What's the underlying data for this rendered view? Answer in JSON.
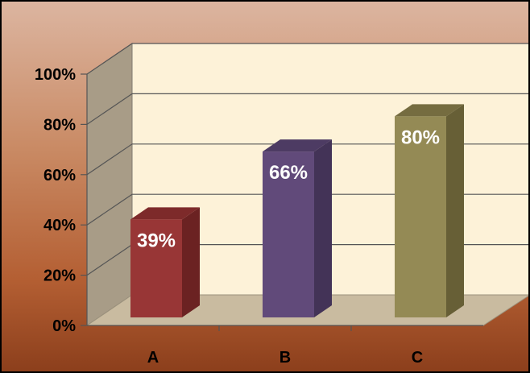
{
  "chart_data": {
    "type": "bar",
    "title": "",
    "xlabel": "",
    "ylabel": "",
    "categories": [
      "A",
      "B",
      "C"
    ],
    "values": [
      39,
      66,
      80
    ],
    "data_labels": [
      "39%",
      "66%",
      "80%"
    ],
    "ylim": [
      0,
      100
    ],
    "yticks": [
      0,
      20,
      40,
      60,
      80,
      100
    ],
    "ytick_labels": [
      "0%",
      "20%",
      "40%",
      "60%",
      "80%",
      "100%"
    ],
    "grid": true,
    "legend": "none",
    "style": "3d-column",
    "colors": {
      "bars": [
        "#983636",
        "#614a7a",
        "#948a55"
      ],
      "bar_sides": [
        "#6b2222",
        "#433357",
        "#675f36"
      ],
      "bar_tops": [
        "#7d2a2a",
        "#4d3b63",
        "#756c40"
      ],
      "back_wall": "#fdf2d8",
      "side_wall": "#a89c87",
      "floor": "#c9bba0",
      "gridline": "#555555",
      "data_label": "#ffffff"
    }
  }
}
